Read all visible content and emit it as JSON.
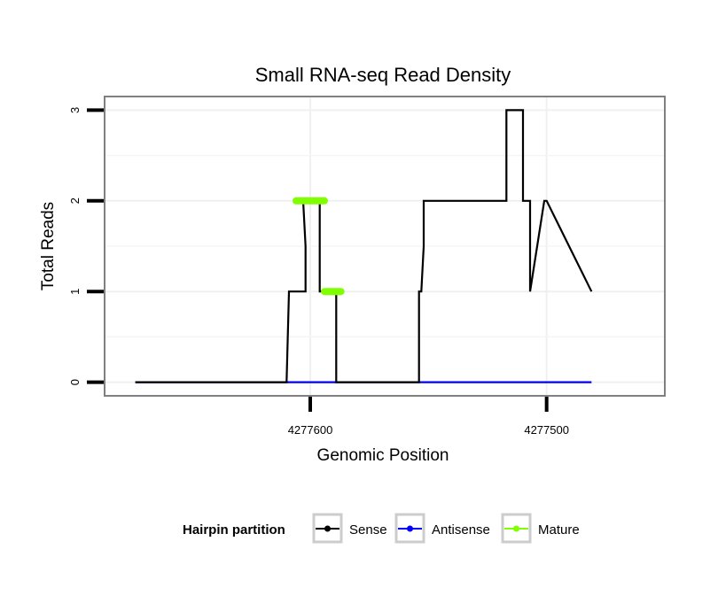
{
  "chart_data": {
    "type": "line",
    "title": "Small RNA-seq Read Density",
    "xlabel": "Genomic Position",
    "ylabel": "Total Reads",
    "xlim": [
      4277687,
      4277450
    ],
    "x_reversed": true,
    "ylim": [
      -0.15,
      3.15
    ],
    "xticks": [
      4277600,
      4277500
    ],
    "xtick_labels": [
      "4277600",
      "4277500"
    ],
    "yticks": [
      0,
      1,
      2,
      3
    ],
    "ytick_labels": [
      "0",
      "1",
      "2",
      "3"
    ],
    "grid": true,
    "legend": {
      "title": "Hairpin partition",
      "placement": "bottom",
      "entries": [
        {
          "label": "Sense",
          "color": "#000000"
        },
        {
          "label": "Antisense",
          "color": "#0000ff"
        },
        {
          "label": "Mature",
          "color": "#7fff00"
        }
      ]
    },
    "series": [
      {
        "name": "Sense",
        "color": "#000000",
        "x": [
          4277674,
          4277610,
          4277609,
          4277602,
          4277602,
          4277603,
          4277606,
          4277606,
          4277600,
          4277596,
          4277596,
          4277589,
          4277589,
          4277559,
          4277554,
          4277554,
          4277553,
          4277553,
          4277552,
          4277552,
          4277544,
          4277544,
          4277518,
          4277517,
          4277517,
          4277514,
          4277514,
          4277512,
          4277510,
          4277510,
          4277507,
          4277507,
          4277501,
          4277500,
          4277500,
          4277481
        ],
        "y": [
          0,
          0,
          1,
          1,
          1.5,
          2,
          2,
          2,
          2,
          2,
          1,
          1,
          0,
          0,
          0,
          1,
          1,
          1,
          1.5,
          2,
          2,
          2,
          2,
          2,
          3,
          3,
          3,
          3,
          3,
          2,
          2,
          1,
          2,
          2,
          2,
          1
        ]
      },
      {
        "name": "Antisense",
        "color": "#0000ff",
        "x": [
          4277674,
          4277481
        ],
        "y": [
          0,
          0
        ]
      },
      {
        "name": "Mature",
        "color": "#7fff00",
        "segments": [
          {
            "x": [
              4277606,
              4277594
            ],
            "y": [
              2,
              2
            ]
          },
          {
            "x": [
              4277594,
              4277587
            ],
            "y": [
              1,
              1
            ]
          }
        ]
      }
    ]
  }
}
